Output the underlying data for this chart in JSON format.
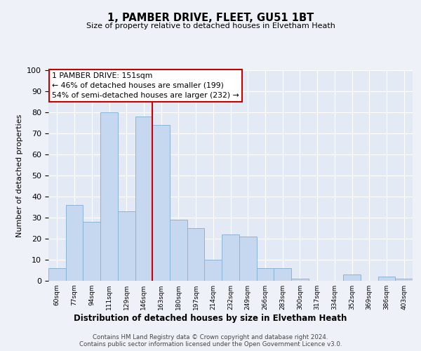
{
  "title": "1, PAMBER DRIVE, FLEET, GU51 1BT",
  "subtitle": "Size of property relative to detached houses in Elvetham Heath",
  "xlabel": "Distribution of detached houses by size in Elvetham Heath",
  "ylabel": "Number of detached properties",
  "bin_labels": [
    "60sqm",
    "77sqm",
    "94sqm",
    "111sqm",
    "129sqm",
    "146sqm",
    "163sqm",
    "180sqm",
    "197sqm",
    "214sqm",
    "232sqm",
    "249sqm",
    "266sqm",
    "283sqm",
    "300sqm",
    "317sqm",
    "334sqm",
    "352sqm",
    "369sqm",
    "386sqm",
    "403sqm"
  ],
  "bar_values": [
    6,
    36,
    28,
    80,
    33,
    78,
    74,
    29,
    25,
    10,
    22,
    21,
    6,
    6,
    1,
    0,
    0,
    3,
    0,
    2,
    1
  ],
  "bar_color": "#c5d8ef",
  "bar_edge_color": "#8ab4d8",
  "vline_x": 6.0,
  "vline_color": "#cc0000",
  "annotation_text": "1 PAMBER DRIVE: 151sqm\n← 46% of detached houses are smaller (199)\n54% of semi-detached houses are larger (232) →",
  "annotation_box_color": "#ffffff",
  "annotation_box_edge": "#cc0000",
  "footnote": "Contains HM Land Registry data © Crown copyright and database right 2024.\nContains public sector information licensed under the Open Government Licence v3.0.",
  "ylim": [
    0,
    100
  ],
  "yticks": [
    0,
    10,
    20,
    30,
    40,
    50,
    60,
    70,
    80,
    90,
    100
  ],
  "background_color": "#eef2f8",
  "plot_background": "#e4eaf5"
}
